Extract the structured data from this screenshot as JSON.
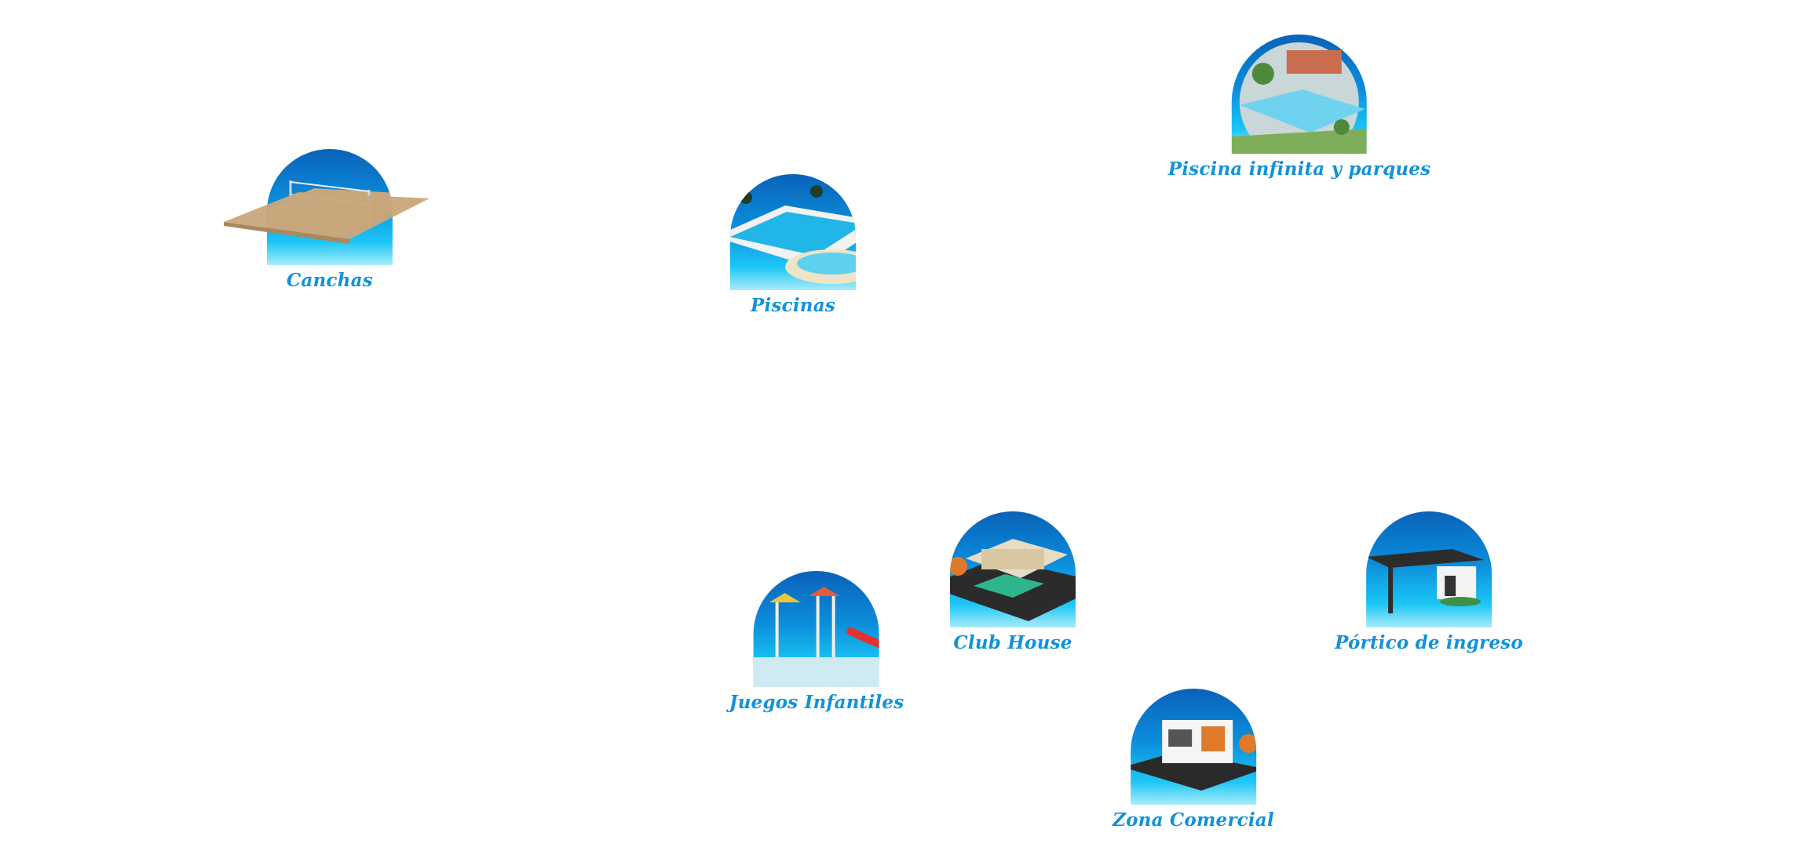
{
  "amenities": [
    {
      "id": "canchas",
      "label": "Canchas",
      "icon": "volleyball-court-icon"
    },
    {
      "id": "piscinas",
      "label": "Piscinas",
      "icon": "pool-icon"
    },
    {
      "id": "piscina-infinita",
      "label": "Piscina infinita y parques",
      "icon": "infinity-pool-park-icon"
    },
    {
      "id": "club-house",
      "label": "Club House",
      "icon": "club-house-icon"
    },
    {
      "id": "portico",
      "label": "Pórtico de ingreso",
      "icon": "entrance-portico-icon"
    },
    {
      "id": "juegos",
      "label": "Juegos Infantiles",
      "icon": "playground-icon"
    },
    {
      "id": "zona-comercial",
      "label": "Zona Comercial",
      "icon": "commercial-zone-icon"
    }
  ],
  "colors": {
    "label": "#1192d8",
    "badge_top": "#0a62b8",
    "badge_bottom": "#a8ecfb"
  }
}
